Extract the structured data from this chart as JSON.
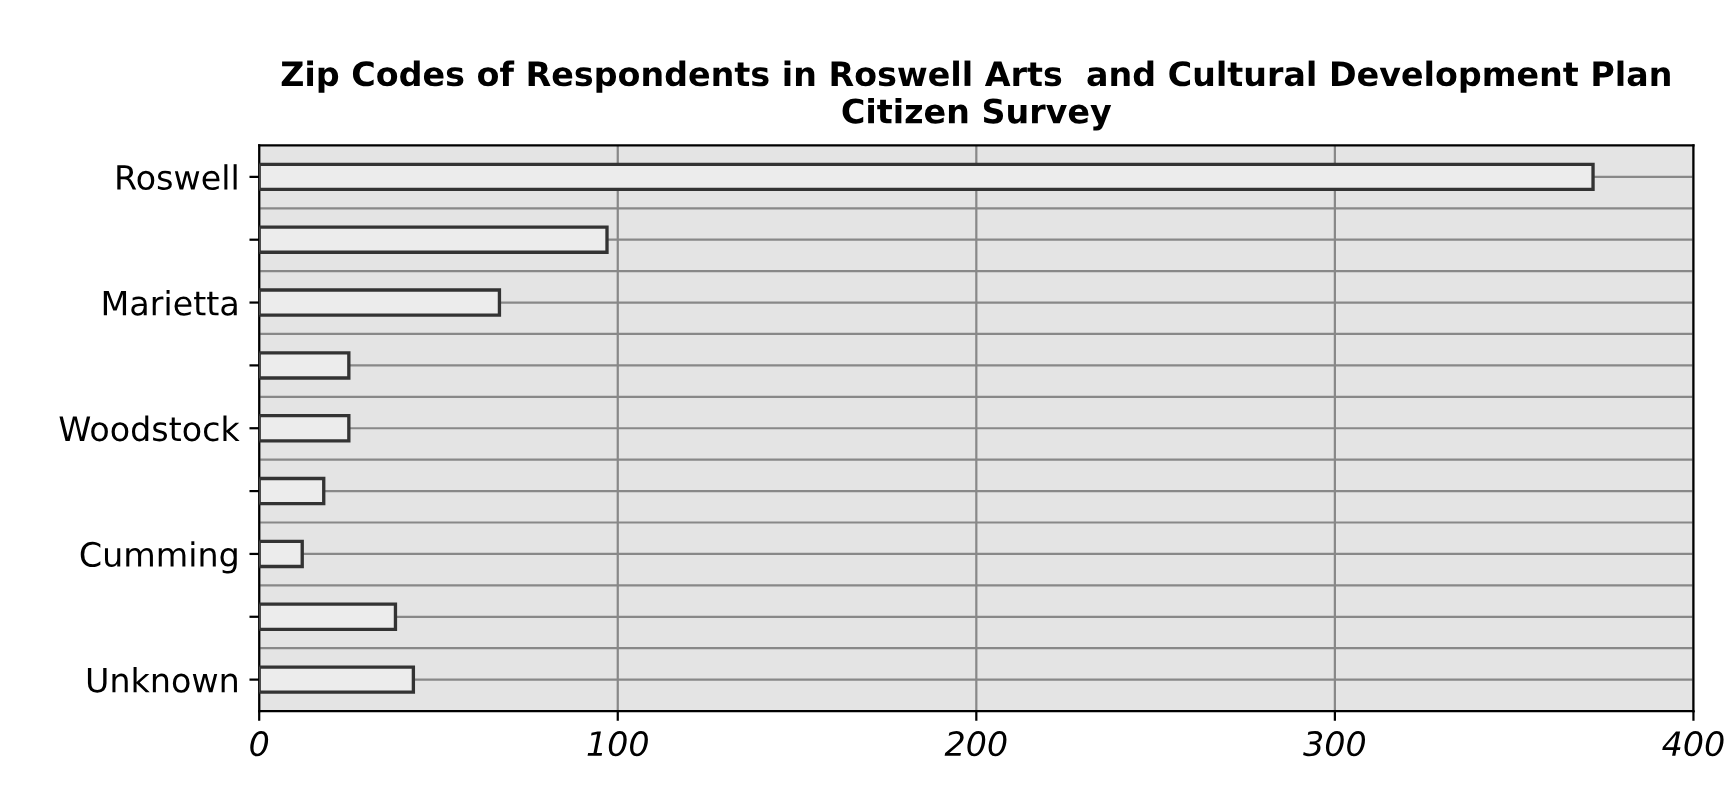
{
  "chart_data": {
    "type": "bar",
    "orientation": "horizontal",
    "title": "Zip Codes of Respondents in Roswell Arts  and Cultural Development Plan\nCitizen Survey",
    "categories": [
      "Roswell",
      null,
      "Marietta",
      null,
      "Woodstock",
      null,
      "Cumming",
      null,
      "Unknown"
    ],
    "values": [
      372,
      97,
      67,
      25,
      25,
      18,
      12,
      38,
      43
    ],
    "color": "#ececec",
    "xlim": [
      0,
      400
    ],
    "xticks": [
      0,
      100,
      200,
      300,
      400
    ],
    "grid": true,
    "legend": false
  }
}
